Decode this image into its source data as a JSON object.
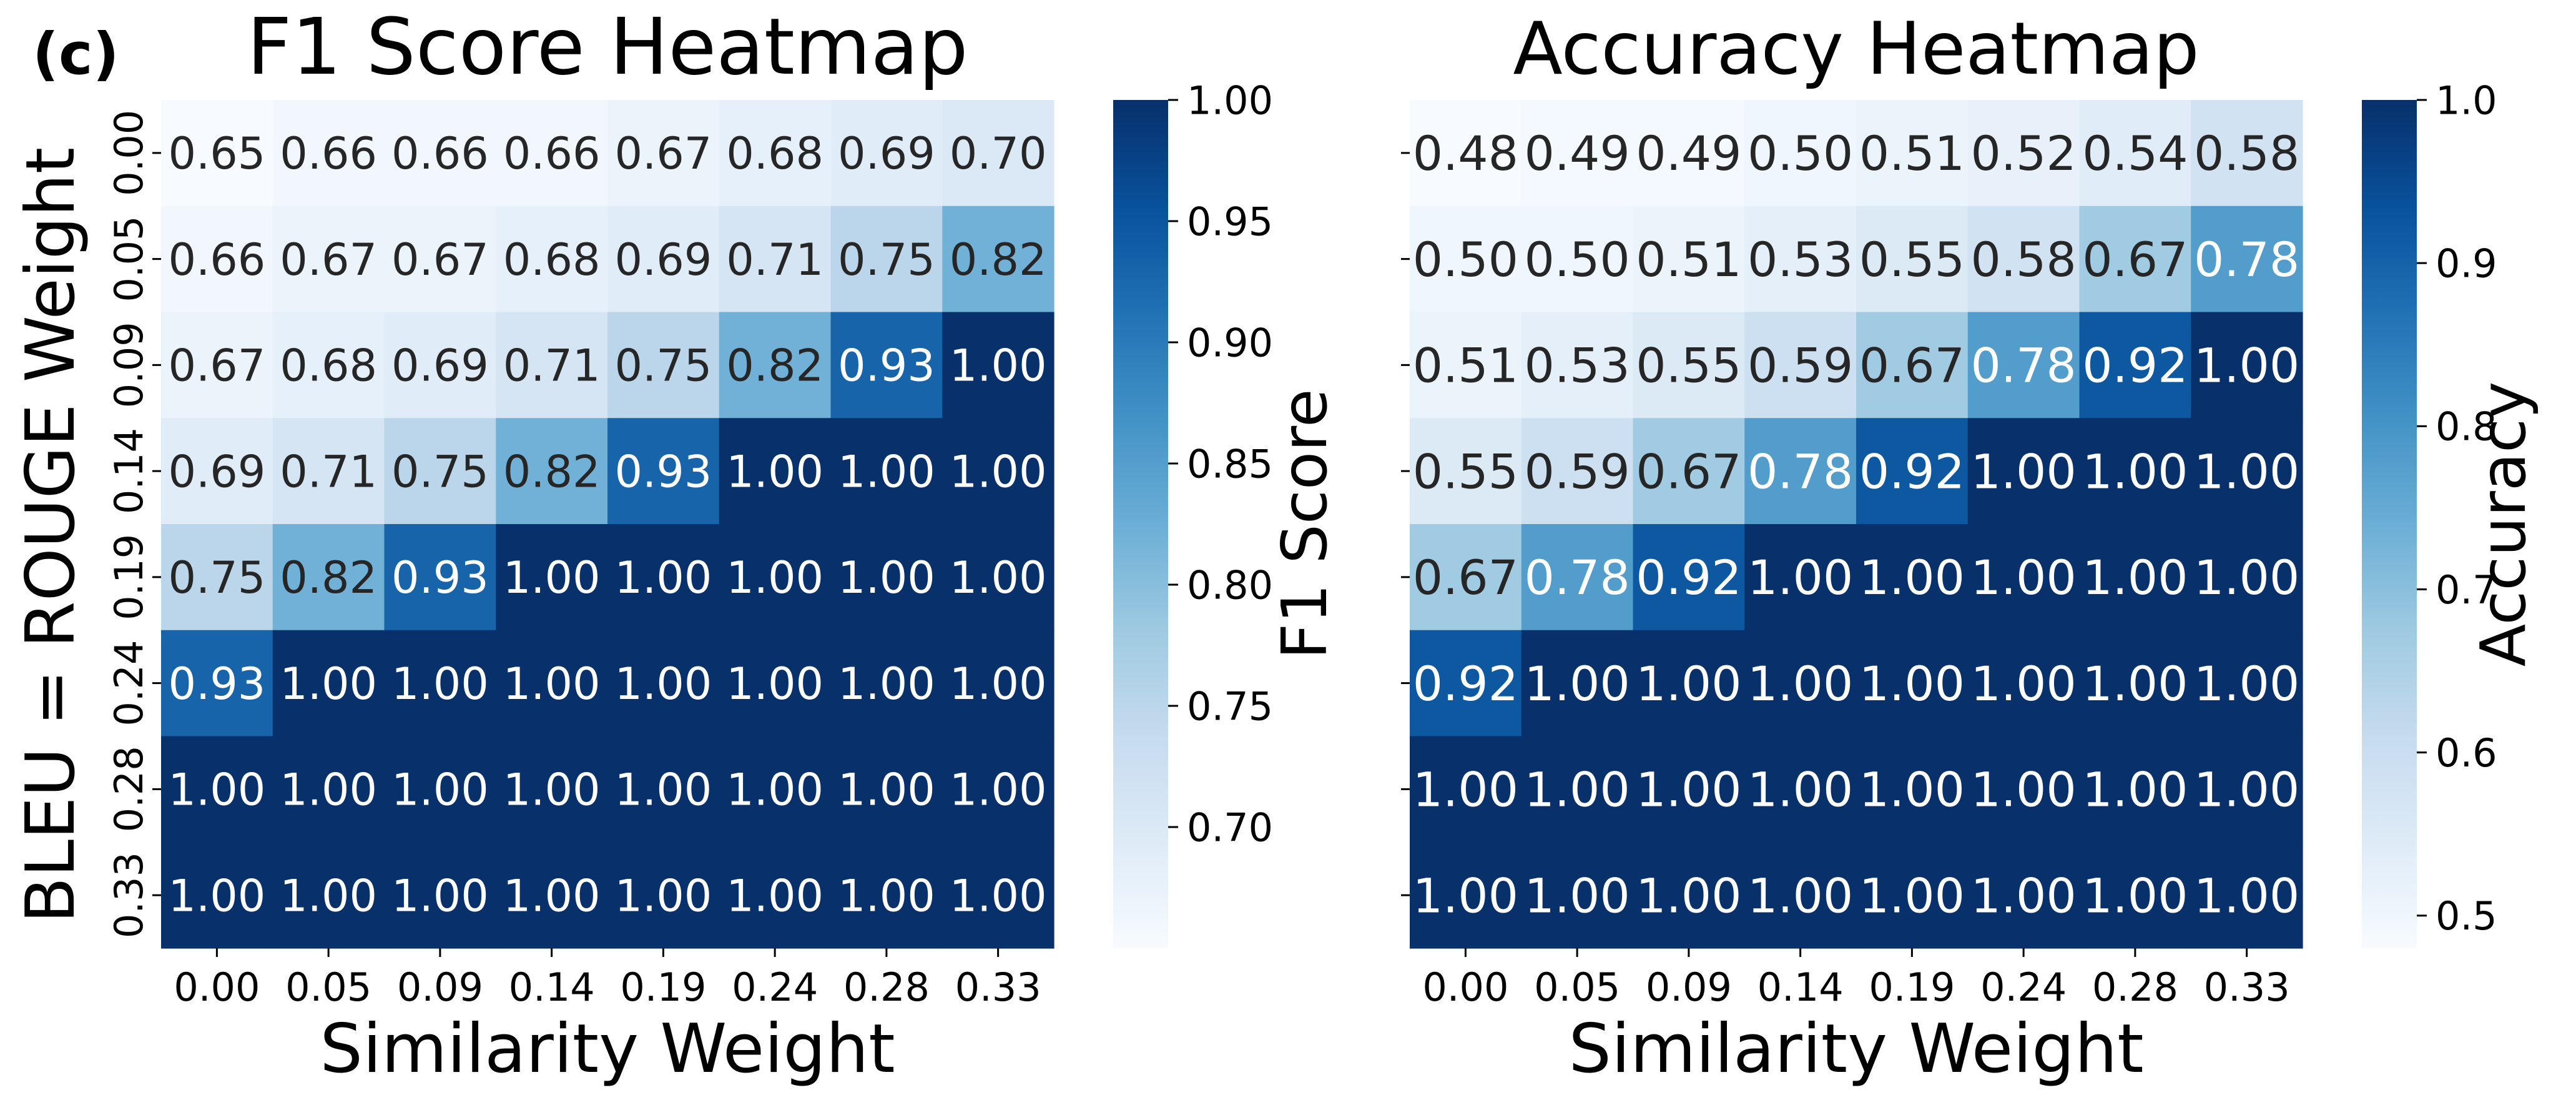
{
  "panel_label": "(c)",
  "chart_data": [
    {
      "type": "heatmap",
      "title": "F1 Score Heatmap",
      "xlabel": "Similarity Weight",
      "ylabel": "BLEU = ROUGE Weight",
      "x_tick_labels": [
        "0.00",
        "0.05",
        "0.09",
        "0.14",
        "0.19",
        "0.24",
        "0.28",
        "0.33"
      ],
      "y_tick_labels": [
        "0.00",
        "0.05",
        "0.09",
        "0.14",
        "0.19",
        "0.24",
        "0.28",
        "0.33"
      ],
      "values": [
        [
          0.65,
          0.66,
          0.66,
          0.66,
          0.67,
          0.68,
          0.69,
          0.7
        ],
        [
          0.66,
          0.67,
          0.67,
          0.68,
          0.69,
          0.71,
          0.75,
          0.82
        ],
        [
          0.67,
          0.68,
          0.69,
          0.71,
          0.75,
          0.82,
          0.93,
          1.0
        ],
        [
          0.69,
          0.71,
          0.75,
          0.82,
          0.93,
          1.0,
          1.0,
          1.0
        ],
        [
          0.75,
          0.82,
          0.93,
          1.0,
          1.0,
          1.0,
          1.0,
          1.0
        ],
        [
          0.93,
          1.0,
          1.0,
          1.0,
          1.0,
          1.0,
          1.0,
          1.0
        ],
        [
          1.0,
          1.0,
          1.0,
          1.0,
          1.0,
          1.0,
          1.0,
          1.0
        ],
        [
          1.0,
          1.0,
          1.0,
          1.0,
          1.0,
          1.0,
          1.0,
          1.0
        ]
      ],
      "value_format_decimals": 2,
      "colormap": "Blues",
      "colorbar": {
        "label": "F1 Score",
        "range": [
          0.65,
          1.0
        ],
        "ticks": [
          0.7,
          0.75,
          0.8,
          0.85,
          0.9,
          0.95,
          1.0
        ],
        "tick_labels": [
          "0.70",
          "0.75",
          "0.80",
          "0.85",
          "0.90",
          "0.95",
          "1.00"
        ]
      }
    },
    {
      "type": "heatmap",
      "title": "Accuracy Heatmap",
      "xlabel": "Similarity Weight",
      "ylabel": "",
      "x_tick_labels": [
        "0.00",
        "0.05",
        "0.09",
        "0.14",
        "0.19",
        "0.24",
        "0.28",
        "0.33"
      ],
      "y_tick_labels": [
        "",
        "",
        "",
        "",
        "",
        "",
        "",
        ""
      ],
      "values": [
        [
          0.48,
          0.49,
          0.49,
          0.5,
          0.51,
          0.52,
          0.54,
          0.58
        ],
        [
          0.5,
          0.5,
          0.51,
          0.53,
          0.55,
          0.58,
          0.67,
          0.78
        ],
        [
          0.51,
          0.53,
          0.55,
          0.59,
          0.67,
          0.78,
          0.92,
          1.0
        ],
        [
          0.55,
          0.59,
          0.67,
          0.78,
          0.92,
          1.0,
          1.0,
          1.0
        ],
        [
          0.67,
          0.78,
          0.92,
          1.0,
          1.0,
          1.0,
          1.0,
          1.0
        ],
        [
          0.92,
          1.0,
          1.0,
          1.0,
          1.0,
          1.0,
          1.0,
          1.0
        ],
        [
          1.0,
          1.0,
          1.0,
          1.0,
          1.0,
          1.0,
          1.0,
          1.0
        ],
        [
          1.0,
          1.0,
          1.0,
          1.0,
          1.0,
          1.0,
          1.0,
          1.0
        ]
      ],
      "value_format_decimals": 2,
      "colormap": "Blues",
      "colorbar": {
        "label": "Accuracy",
        "range": [
          0.48,
          1.0
        ],
        "ticks": [
          0.5,
          0.6,
          0.7,
          0.8,
          0.9,
          1.0
        ],
        "tick_labels": [
          "0.5",
          "0.6",
          "0.7",
          "0.8",
          "0.9",
          "1.0"
        ]
      }
    }
  ]
}
